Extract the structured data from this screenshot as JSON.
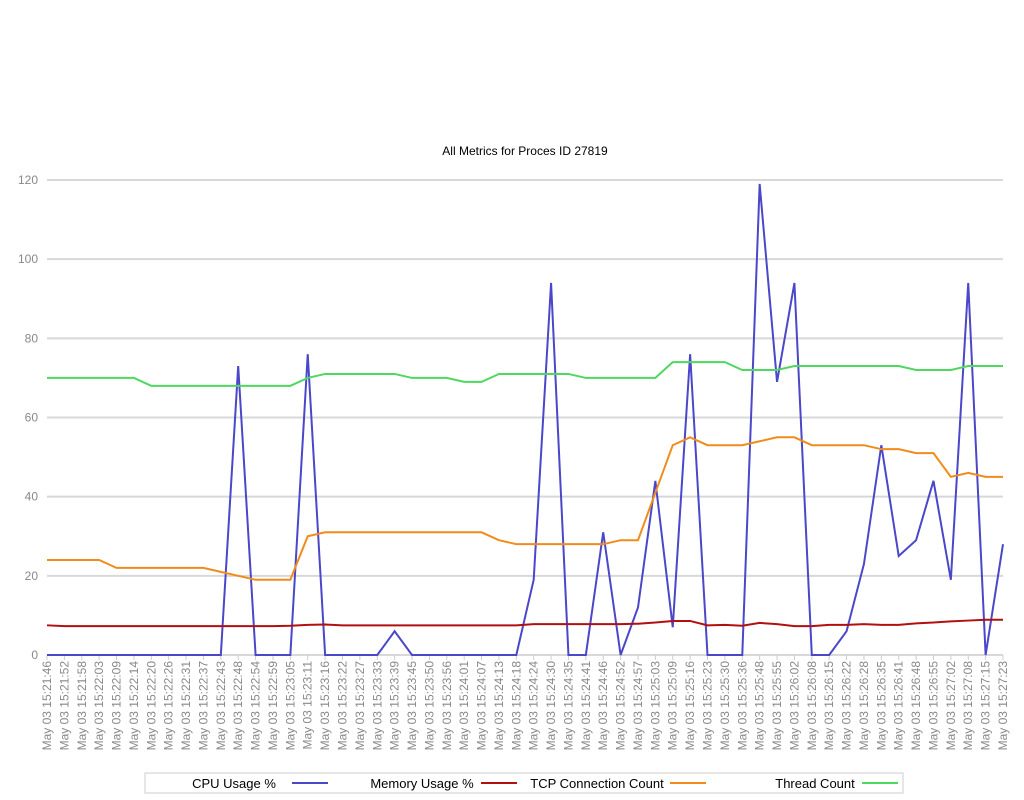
{
  "chart_data": {
    "type": "line",
    "title": "All Metrics for Proces ID 27819",
    "categories": [
      "May 03 15:21:46",
      "May 03 15:21:52",
      "May 03 15:21:58",
      "May 03 15:22:03",
      "May 03 15:22:09",
      "May 03 15:22:14",
      "May 03 15:22:20",
      "May 03 15:22:26",
      "May 03 15:22:31",
      "May 03 15:22:37",
      "May 03 15:22:43",
      "May 03 15:22:48",
      "May 03 15:22:54",
      "May 03 15:22:59",
      "May 03 15:23:05",
      "May 03 15:23:11",
      "May 03 15:23:16",
      "May 03 15:23:22",
      "May 03 15:23:27",
      "May 03 15:23:33",
      "May 03 15:23:39",
      "May 03 15:23:45",
      "May 03 15:23:50",
      "May 03 15:23:56",
      "May 03 15:24:01",
      "May 03 15:24:07",
      "May 03 15:24:13",
      "May 03 15:24:18",
      "May 03 15:24:24",
      "May 03 15:24:30",
      "May 03 15:24:35",
      "May 03 15:24:41",
      "May 03 15:24:46",
      "May 03 15:24:52",
      "May 03 15:24:57",
      "May 03 15:25:03",
      "May 03 15:25:09",
      "May 03 15:25:16",
      "May 03 15:25:23",
      "May 03 15:25:30",
      "May 03 15:25:36",
      "May 03 15:25:48",
      "May 03 15:25:55",
      "May 03 15:26:02",
      "May 03 15:26:08",
      "May 03 15:26:15",
      "May 03 15:26:22",
      "May 03 15:26:28",
      "May 03 15:26:35",
      "May 03 15:26:41",
      "May 03 15:26:48",
      "May 03 15:26:55",
      "May 03 15:27:02",
      "May 03 15:27:08",
      "May 03 15:27:15",
      "May 03 15:27:23"
    ],
    "series": [
      {
        "name": "CPU Usage %",
        "color": "#4a47c9",
        "values": [
          0,
          0,
          0,
          0,
          0,
          0,
          0,
          0,
          0,
          0,
          0,
          73,
          0,
          0,
          0,
          76,
          0,
          0,
          0,
          0,
          6,
          0,
          0,
          0,
          0,
          0,
          0,
          0,
          19,
          94,
          0,
          0,
          31,
          0,
          12,
          44,
          7,
          76,
          0,
          0,
          0,
          119,
          69,
          94,
          0,
          0,
          6,
          23,
          53,
          25,
          29,
          44,
          19,
          94,
          0,
          28
        ]
      },
      {
        "name": "Memory Usage %",
        "color": "#b21010",
        "values": [
          7.5,
          7.3,
          7.3,
          7.3,
          7.3,
          7.3,
          7.3,
          7.3,
          7.3,
          7.3,
          7.3,
          7.3,
          7.3,
          7.3,
          7.4,
          7.6,
          7.7,
          7.5,
          7.5,
          7.5,
          7.5,
          7.5,
          7.5,
          7.5,
          7.5,
          7.5,
          7.5,
          7.5,
          7.8,
          7.8,
          7.8,
          7.8,
          7.8,
          7.8,
          7.9,
          8.2,
          8.6,
          8.6,
          7.5,
          7.6,
          7.4,
          8.1,
          7.8,
          7.3,
          7.3,
          7.6,
          7.6,
          7.8,
          7.6,
          7.6,
          8,
          8.2,
          8.5,
          8.7,
          8.9,
          8.9
        ]
      },
      {
        "name": "TCP Connection Count",
        "color": "#f08c1b",
        "values": [
          24,
          24,
          24,
          24,
          22,
          22,
          22,
          22,
          22,
          22,
          21,
          20,
          19,
          19,
          19,
          30,
          31,
          31,
          31,
          31,
          31,
          31,
          31,
          31,
          31,
          31,
          29,
          28,
          28,
          28,
          28,
          28,
          28,
          29,
          29,
          41,
          53,
          55,
          53,
          53,
          53,
          54,
          55,
          55,
          53,
          53,
          53,
          53,
          52,
          52,
          51,
          51,
          45,
          46,
          45,
          45
        ]
      },
      {
        "name": "Thread Count",
        "color": "#4fd860",
        "values": [
          70,
          70,
          70,
          70,
          70,
          70,
          68,
          68,
          68,
          68,
          68,
          68,
          68,
          68,
          68,
          70,
          71,
          71,
          71,
          71,
          71,
          70,
          70,
          70,
          69,
          69,
          71,
          71,
          71,
          71,
          71,
          70,
          70,
          70,
          70,
          70,
          74,
          74,
          74,
          74,
          72,
          72,
          72,
          73,
          73,
          73,
          73,
          73,
          73,
          73,
          72,
          72,
          72,
          73,
          73,
          73
        ]
      }
    ],
    "ylim": [
      0,
      120
    ],
    "yticks": [
      0,
      20,
      40,
      60,
      80,
      100,
      120
    ],
    "grid": true,
    "legend": "bottom"
  }
}
